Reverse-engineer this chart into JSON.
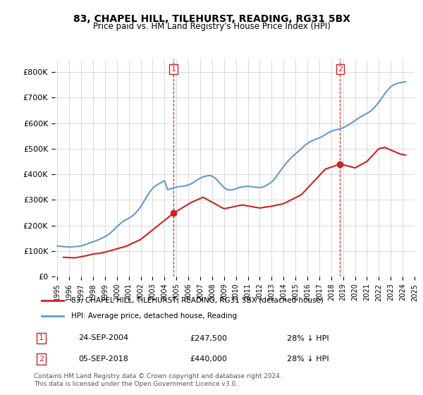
{
  "title": "83, CHAPEL HILL, TILEHURST, READING, RG31 5BX",
  "subtitle": "Price paid vs. HM Land Registry's House Price Index (HPI)",
  "legend_line1": "83, CHAPEL HILL, TILEHURST, READING, RG31 5BX (detached house)",
  "legend_line2": "HPI: Average price, detached house, Reading",
  "footnote1": "Contains HM Land Registry data © Crown copyright and database right 2024.",
  "footnote2": "This data is licensed under the Open Government Licence v3.0.",
  "annotation1_label": "1",
  "annotation1_date": "24-SEP-2004",
  "annotation1_price": "£247,500",
  "annotation1_hpi": "28% ↓ HPI",
  "annotation2_label": "2",
  "annotation2_date": "05-SEP-2018",
  "annotation2_price": "£440,000",
  "annotation2_hpi": "28% ↓ HPI",
  "hpi_color": "#6699cc",
  "price_color": "#cc2222",
  "annotation_color": "#cc2222",
  "ylabel_color": "#333333",
  "grid_color": "#cccccc",
  "ylim": [
    0,
    850000
  ],
  "yticks": [
    0,
    100000,
    200000,
    300000,
    400000,
    500000,
    600000,
    700000,
    800000
  ],
  "hpi_x": [
    1995.0,
    1995.25,
    1995.5,
    1995.75,
    1996.0,
    1996.25,
    1996.5,
    1996.75,
    1997.0,
    1997.25,
    1997.5,
    1997.75,
    1998.0,
    1998.25,
    1998.5,
    1998.75,
    1999.0,
    1999.25,
    1999.5,
    1999.75,
    2000.0,
    2000.25,
    2000.5,
    2000.75,
    2001.0,
    2001.25,
    2001.5,
    2001.75,
    2002.0,
    2002.25,
    2002.5,
    2002.75,
    2003.0,
    2003.25,
    2003.5,
    2003.75,
    2004.0,
    2004.25,
    2004.5,
    2004.75,
    2005.0,
    2005.25,
    2005.5,
    2005.75,
    2006.0,
    2006.25,
    2006.5,
    2006.75,
    2007.0,
    2007.25,
    2007.5,
    2007.75,
    2008.0,
    2008.25,
    2008.5,
    2008.75,
    2009.0,
    2009.25,
    2009.5,
    2009.75,
    2010.0,
    2010.25,
    2010.5,
    2010.75,
    2011.0,
    2011.25,
    2011.5,
    2011.75,
    2012.0,
    2012.25,
    2012.5,
    2012.75,
    2013.0,
    2013.25,
    2013.5,
    2013.75,
    2014.0,
    2014.25,
    2014.5,
    2014.75,
    2015.0,
    2015.25,
    2015.5,
    2015.75,
    2016.0,
    2016.25,
    2016.5,
    2016.75,
    2017.0,
    2017.25,
    2017.5,
    2017.75,
    2018.0,
    2018.25,
    2018.5,
    2018.75,
    2019.0,
    2019.25,
    2019.5,
    2019.75,
    2020.0,
    2020.25,
    2020.5,
    2020.75,
    2021.0,
    2021.25,
    2021.5,
    2021.75,
    2022.0,
    2022.25,
    2022.5,
    2022.75,
    2023.0,
    2023.25,
    2023.5,
    2023.75,
    2024.0,
    2024.25
  ],
  "hpi_y": [
    120000,
    118000,
    117000,
    116000,
    115000,
    116000,
    117000,
    118000,
    120000,
    123000,
    127000,
    132000,
    136000,
    140000,
    145000,
    150000,
    156000,
    163000,
    172000,
    183000,
    195000,
    205000,
    215000,
    222000,
    228000,
    235000,
    245000,
    258000,
    273000,
    292000,
    312000,
    330000,
    345000,
    355000,
    362000,
    368000,
    375000,
    340000,
    343000,
    347000,
    350000,
    352000,
    353000,
    355000,
    358000,
    363000,
    370000,
    378000,
    385000,
    390000,
    393000,
    395000,
    393000,
    385000,
    373000,
    360000,
    348000,
    340000,
    338000,
    340000,
    343000,
    348000,
    350000,
    352000,
    353000,
    352000,
    350000,
    349000,
    348000,
    350000,
    355000,
    362000,
    370000,
    382000,
    398000,
    415000,
    430000,
    445000,
    458000,
    470000,
    480000,
    490000,
    500000,
    512000,
    520000,
    528000,
    533000,
    538000,
    542000,
    548000,
    555000,
    562000,
    568000,
    572000,
    575000,
    578000,
    582000,
    588000,
    595000,
    602000,
    610000,
    618000,
    625000,
    632000,
    638000,
    645000,
    655000,
    668000,
    682000,
    698000,
    715000,
    730000,
    742000,
    750000,
    755000,
    758000,
    760000,
    762000
  ],
  "price_x": [
    1995.5,
    1996.5,
    1997.5,
    1998.0,
    1998.75,
    2000.75,
    2002.0,
    2004.75,
    2006.25,
    2007.25,
    2009.0,
    2010.5,
    2012.0,
    2013.0,
    2014.0,
    2015.5,
    2017.5,
    2018.75,
    2020.0,
    2021.0,
    2022.0,
    2022.5,
    2023.25,
    2023.75,
    2024.25
  ],
  "price_y": [
    75000,
    73000,
    82000,
    88000,
    92000,
    118000,
    145000,
    247500,
    290000,
    310000,
    265000,
    280000,
    268000,
    275000,
    285000,
    320000,
    420000,
    440000,
    425000,
    450000,
    500000,
    505000,
    490000,
    480000,
    475000
  ],
  "ann1_x": 2004.75,
  "ann1_y": 247500,
  "ann2_x": 2018.75,
  "ann2_y": 440000,
  "xlim_left": 1994.8,
  "xlim_right": 2024.8
}
